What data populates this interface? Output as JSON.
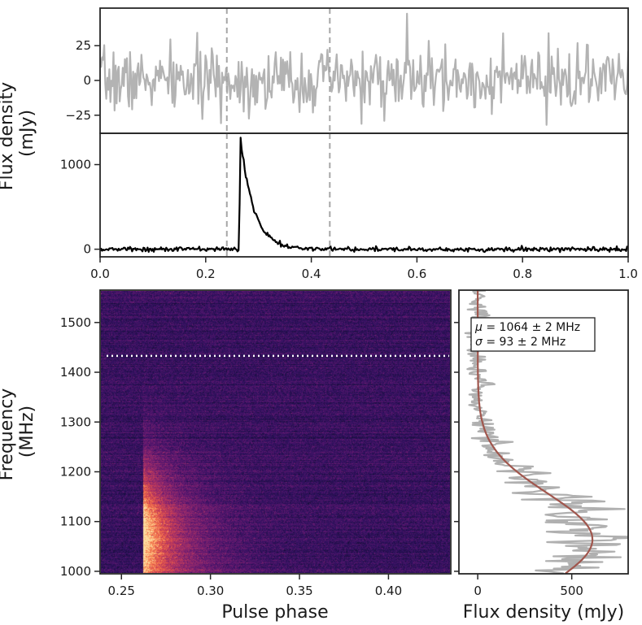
{
  "chart_data": [
    {
      "id": "noise-profile",
      "type": "line",
      "description_panel": "off-pulse noise profile (top)",
      "xlim": [
        0.0,
        1.0
      ],
      "ylim": [
        -38,
        52
      ],
      "yticks": [
        -25,
        0,
        25
      ],
      "ytick_labels": [
        "−25",
        "0",
        "25"
      ],
      "series": [
        {
          "name": "noise",
          "color": "#b3b3b3",
          "seed": 7,
          "sigma": 11,
          "x_range": [
            0.0,
            1.0
          ],
          "n_points": 512
        }
      ],
      "vlines": [
        0.24,
        0.435
      ],
      "vline_color": "#a6a6a6"
    },
    {
      "id": "pulse-profile",
      "type": "line",
      "description_panel": "frequency-averaged pulse profile",
      "xlim": [
        0.0,
        1.0
      ],
      "ylim": [
        -90,
        1370
      ],
      "xticks": [
        0.0,
        0.2,
        0.4,
        0.6,
        0.8,
        1.0
      ],
      "xtick_labels": [
        "0.0",
        "0.2",
        "0.4",
        "0.6",
        "0.8",
        "1.0"
      ],
      "yticks": [
        0,
        1000
      ],
      "ytick_labels": [
        "0",
        "1000"
      ],
      "ylabel": "Flux density\n(mJy)",
      "pulse": {
        "onset_phase": 0.263,
        "peak_phase": 0.266,
        "peak_flux": 1340,
        "decay_width": 0.025,
        "noise_sigma": 13
      },
      "series": [
        {
          "name": "profile",
          "color": "#000000",
          "x_range": [
            0.0,
            1.0
          ],
          "n_points": 512
        }
      ],
      "vlines": [
        0.24,
        0.435
      ],
      "vline_color": "#a6a6a6"
    },
    {
      "id": "dynamic-spectrum",
      "type": "heatmap",
      "description_panel": "dynamic spectrum (frequency vs pulse phase)",
      "xlim": [
        0.238,
        0.435
      ],
      "ylim": [
        995,
        1565
      ],
      "xticks": [
        0.25,
        0.3,
        0.35,
        0.4
      ],
      "xtick_labels": [
        "0.25",
        "0.30",
        "0.35",
        "0.40"
      ],
      "yticks": [
        1000,
        1100,
        1200,
        1300,
        1400,
        1500
      ],
      "ytick_labels": [
        "1000",
        "1100",
        "1200",
        "1300",
        "1400",
        "1500"
      ],
      "xlabel": "Pulse phase",
      "ylabel": "Frequency\n(MHz)",
      "colormap": "magma",
      "onset_phase": 0.262,
      "cutoff_line_mhz": 1433,
      "cutoff_line_color": "#ffffff"
    },
    {
      "id": "spectrum",
      "type": "line",
      "description_panel": "spectrum with Gaussian fit",
      "xlim": [
        -100,
        800
      ],
      "ylim": [
        995,
        1565
      ],
      "xticks": [
        0,
        500
      ],
      "xtick_labels": [
        "0",
        "500"
      ],
      "xlabel": "Flux density (mJy)",
      "series": [
        {
          "name": "spectrum",
          "color": "#b0b0b0"
        },
        {
          "name": "gaussian fit",
          "color": "#a0564d"
        }
      ],
      "fit": {
        "mu_mhz": 1064,
        "mu_err": 2,
        "sigma_mhz": 93,
        "sigma_err": 2,
        "amplitude_mjy": 610
      },
      "legend": {
        "mu_symbol": "μ",
        "mu_text": " = 1064 ± 2 MHz",
        "sigma_symbol": "σ",
        "sigma_text": " = 93 ± 2 MHz",
        "placement": "top-left"
      }
    }
  ]
}
